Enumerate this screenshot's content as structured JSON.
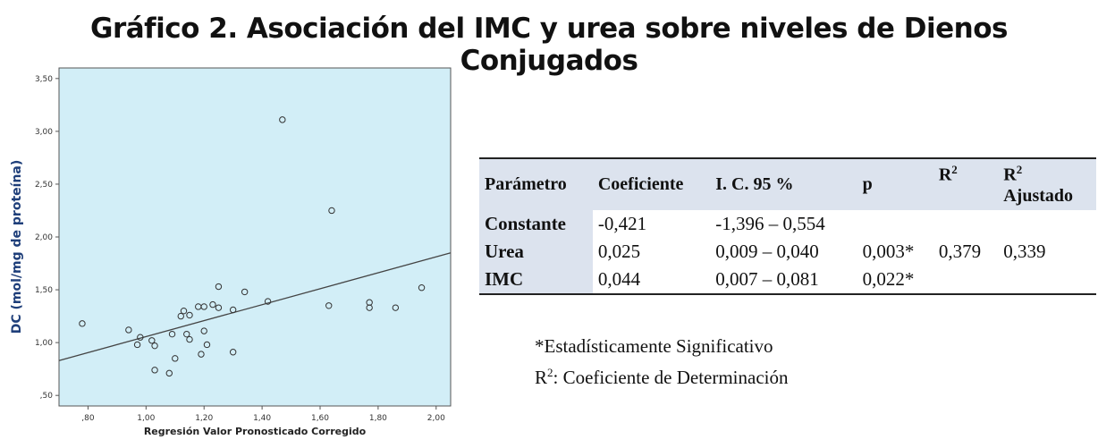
{
  "title": "Gráfico 2. Asociación del IMC y urea sobre niveles de Dienos Conjugados",
  "chart_data": {
    "type": "scatter",
    "xlabel": "Regresión Valor Pronosticado Corregido",
    "ylabel": "DC (mol/mg de proteína)",
    "xlim": [
      0.7,
      2.05
    ],
    "ylim": [
      0.4,
      3.6
    ],
    "x_ticks": [
      0.8,
      1.0,
      1.2,
      1.4,
      1.6,
      1.8,
      2.0
    ],
    "x_tick_labels": [
      ",80",
      "1,00",
      "1,20",
      "1,40",
      "1,60",
      "1,80",
      "2,00"
    ],
    "y_ticks": [
      0.5,
      1.0,
      1.5,
      2.0,
      2.5,
      3.0,
      3.5
    ],
    "y_tick_labels": [
      ",50",
      "1,00",
      "1,50",
      "2,00",
      "2,50",
      "3,00",
      "3,50"
    ],
    "points": [
      {
        "x": 0.78,
        "y": 1.18
      },
      {
        "x": 0.94,
        "y": 1.12
      },
      {
        "x": 0.97,
        "y": 0.98
      },
      {
        "x": 0.98,
        "y": 1.05
      },
      {
        "x": 1.02,
        "y": 1.02
      },
      {
        "x": 1.03,
        "y": 0.97
      },
      {
        "x": 1.03,
        "y": 0.74
      },
      {
        "x": 1.08,
        "y": 0.71
      },
      {
        "x": 1.09,
        "y": 1.08
      },
      {
        "x": 1.1,
        "y": 0.85
      },
      {
        "x": 1.12,
        "y": 1.25
      },
      {
        "x": 1.13,
        "y": 1.3
      },
      {
        "x": 1.14,
        "y": 1.08
      },
      {
        "x": 1.15,
        "y": 1.03
      },
      {
        "x": 1.15,
        "y": 1.26
      },
      {
        "x": 1.18,
        "y": 1.34
      },
      {
        "x": 1.19,
        "y": 0.89
      },
      {
        "x": 1.2,
        "y": 1.34
      },
      {
        "x": 1.2,
        "y": 1.11
      },
      {
        "x": 1.21,
        "y": 0.98
      },
      {
        "x": 1.23,
        "y": 1.36
      },
      {
        "x": 1.25,
        "y": 1.33
      },
      {
        "x": 1.25,
        "y": 1.53
      },
      {
        "x": 1.3,
        "y": 1.31
      },
      {
        "x": 1.3,
        "y": 0.91
      },
      {
        "x": 1.34,
        "y": 1.48
      },
      {
        "x": 1.42,
        "y": 1.39
      },
      {
        "x": 1.47,
        "y": 3.11
      },
      {
        "x": 1.63,
        "y": 1.35
      },
      {
        "x": 1.64,
        "y": 2.25
      },
      {
        "x": 1.77,
        "y": 1.33
      },
      {
        "x": 1.77,
        "y": 1.38
      },
      {
        "x": 1.86,
        "y": 1.33
      },
      {
        "x": 1.95,
        "y": 1.52
      }
    ],
    "fit_line": {
      "x": [
        0.7,
        2.05
      ],
      "y": [
        0.83,
        1.85
      ]
    },
    "background": "#d2eef7",
    "marker_color": "#333333",
    "line_color": "#444444",
    "grid": false
  },
  "table": {
    "headers": [
      "Parámetro",
      "Coeficiente",
      "I. C. 95 %",
      "p",
      "R",
      "R"
    ],
    "header_sup": "2",
    "header_ajustado": "Ajustado",
    "rows": [
      {
        "param": "Constante",
        "coef": "-0,421",
        "ic": "-1,396 – 0,554",
        "p": "",
        "r2": "",
        "r2adj": ""
      },
      {
        "param": "Urea",
        "coef": "0,025",
        "ic": "0,009 – 0,040",
        "p": "0,003*",
        "r2": "0,379",
        "r2adj": "0,339"
      },
      {
        "param": "IMC",
        "coef": "0,044",
        "ic": "0,007 – 0,081",
        "p": "0,022*",
        "r2": "",
        "r2adj": ""
      }
    ],
    "header_bg": "#dce3ee"
  },
  "notes": {
    "line1": "*Estadísticamente Significativo",
    "line2_prefix": "R",
    "line2_sup": "2",
    "line2_rest": ": Coeficiente de Determinación"
  }
}
